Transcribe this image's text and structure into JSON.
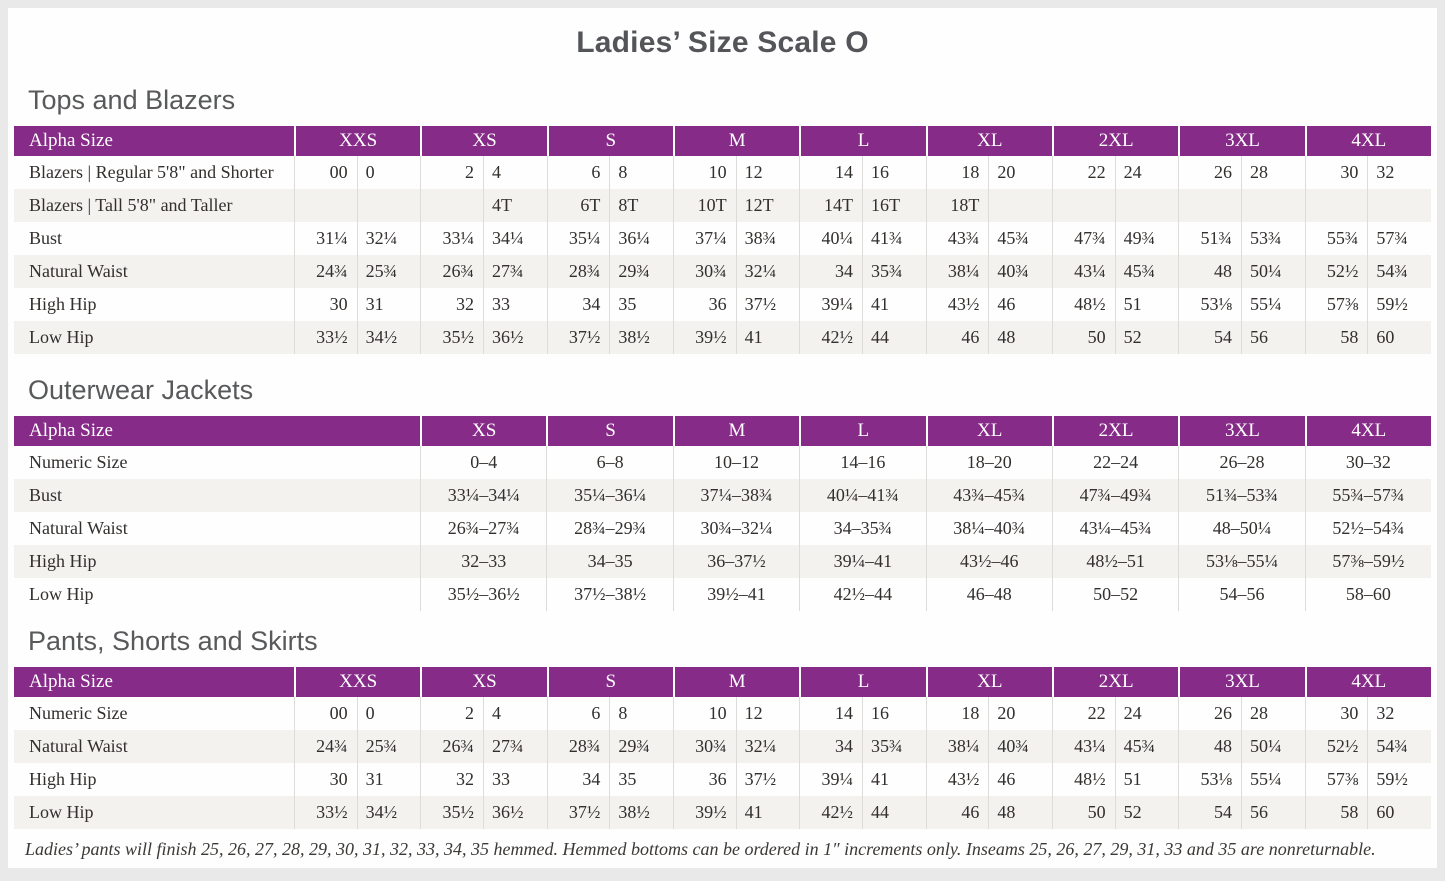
{
  "page_title": "Ladies’ Size Scale O",
  "colors": {
    "header_purple": "#862b88",
    "alt_row": "#f3f2ef",
    "divider": "#dedcd8",
    "heading_gray": "#58595b",
    "page_bg": "#e9e9e9"
  },
  "tables": [
    {
      "section_title": "Tops and Blazers",
      "label_header": "Alpha Size",
      "columns_per_group": 2,
      "size_groups": [
        "XXS",
        "XS",
        "S",
        "M",
        "L",
        "XL",
        "2XL",
        "3XL",
        "4XL"
      ],
      "rows": [
        {
          "label": "Blazers | Regular 5'8\" and Shorter",
          "values": [
            "00",
            "0",
            "2",
            "4",
            "6",
            "8",
            "10",
            "12",
            "14",
            "16",
            "18",
            "20",
            "22",
            "24",
            "26",
            "28",
            "30",
            "32"
          ]
        },
        {
          "label": "Blazers | Tall 5'8\" and Taller",
          "values": [
            "",
            "",
            "",
            "4T",
            "6T",
            "8T",
            "10T",
            "12T",
            "14T",
            "16T",
            "18T",
            "",
            "",
            "",
            "",
            "",
            "",
            ""
          ]
        },
        {
          "label": "Bust",
          "values": [
            "31¼",
            "32¼",
            "33¼",
            "34¼",
            "35¼",
            "36¼",
            "37¼",
            "38¾",
            "40¼",
            "41¾",
            "43¾",
            "45¾",
            "47¾",
            "49¾",
            "51¾",
            "53¾",
            "55¾",
            "57¾"
          ]
        },
        {
          "label": "Natural Waist",
          "values": [
            "24¾",
            "25¾",
            "26¾",
            "27¾",
            "28¾",
            "29¾",
            "30¾",
            "32¼",
            "34",
            "35¾",
            "38¼",
            "40¾",
            "43¼",
            "45¾",
            "48",
            "50¼",
            "52½",
            "54¾"
          ]
        },
        {
          "label": "High Hip",
          "values": [
            "30",
            "31",
            "32",
            "33",
            "34",
            "35",
            "36",
            "37½",
            "39¼",
            "41",
            "43½",
            "46",
            "48½",
            "51",
            "53⅛",
            "55¼",
            "57⅜",
            "59½"
          ]
        },
        {
          "label": "Low Hip",
          "values": [
            "33½",
            "34½",
            "35½",
            "36½",
            "37½",
            "38½",
            "39½",
            "41",
            "42½",
            "44",
            "46",
            "48",
            "50",
            "52",
            "54",
            "56",
            "58",
            "60"
          ]
        }
      ]
    },
    {
      "section_title": "Outerwear Jackets",
      "label_header": "Alpha Size",
      "columns_per_group": 1,
      "size_groups": [
        "XS",
        "S",
        "M",
        "L",
        "XL",
        "2XL",
        "3XL",
        "4XL"
      ],
      "rows": [
        {
          "label": "Numeric Size",
          "values": [
            "0–4",
            "6–8",
            "10–12",
            "14–16",
            "18–20",
            "22–24",
            "26–28",
            "30–32"
          ]
        },
        {
          "label": "Bust",
          "values": [
            "33¼–34¼",
            "35¼–36¼",
            "37¼–38¾",
            "40¼–41¾",
            "43¾–45¾",
            "47¾–49¾",
            "51¾–53¾",
            "55¾–57¾"
          ]
        },
        {
          "label": "Natural Waist",
          "values": [
            "26¾–27¾",
            "28¾–29¾",
            "30¾–32¼",
            "34–35¾",
            "38¼–40¾",
            "43¼–45¾",
            "48–50¼",
            "52½–54¾"
          ]
        },
        {
          "label": "High Hip",
          "values": [
            "32–33",
            "34–35",
            "36–37½",
            "39¼–41",
            "43½–46",
            "48½–51",
            "53⅛–55¼",
            "57⅜–59½"
          ]
        },
        {
          "label": "Low Hip",
          "values": [
            "35½–36½",
            "37½–38½",
            "39½–41",
            "42½–44",
            "46–48",
            "50–52",
            "54–56",
            "58–60"
          ]
        }
      ]
    },
    {
      "section_title": "Pants, Shorts and Skirts",
      "label_header": "Alpha Size",
      "columns_per_group": 2,
      "size_groups": [
        "XXS",
        "XS",
        "S",
        "M",
        "L",
        "XL",
        "2XL",
        "3XL",
        "4XL"
      ],
      "rows": [
        {
          "label": "Numeric Size",
          "values": [
            "00",
            "0",
            "2",
            "4",
            "6",
            "8",
            "10",
            "12",
            "14",
            "16",
            "18",
            "20",
            "22",
            "24",
            "26",
            "28",
            "30",
            "32"
          ]
        },
        {
          "label": "Natural Waist",
          "values": [
            "24¾",
            "25¾",
            "26¾",
            "27¾",
            "28¾",
            "29¾",
            "30¾",
            "32¼",
            "34",
            "35¾",
            "38¼",
            "40¾",
            "43¼",
            "45¾",
            "48",
            "50¼",
            "52½",
            "54¾"
          ]
        },
        {
          "label": "High Hip",
          "values": [
            "30",
            "31",
            "32",
            "33",
            "34",
            "35",
            "36",
            "37½",
            "39¼",
            "41",
            "43½",
            "46",
            "48½",
            "51",
            "53⅛",
            "55¼",
            "57⅜",
            "59½"
          ]
        },
        {
          "label": "Low Hip",
          "values": [
            "33½",
            "34½",
            "35½",
            "36½",
            "37½",
            "38½",
            "39½",
            "41",
            "42½",
            "44",
            "46",
            "48",
            "50",
            "52",
            "54",
            "56",
            "58",
            "60"
          ]
        }
      ]
    }
  ],
  "footnote": "Ladies’ pants will finish 25, 26, 27, 28, 29, 30, 31, 32, 33, 34, 35 hemmed. Hemmed bottoms can be ordered in 1″ increments only. Inseams 25, 26, 27, 29, 31, 33 and 35 are nonreturnable."
}
